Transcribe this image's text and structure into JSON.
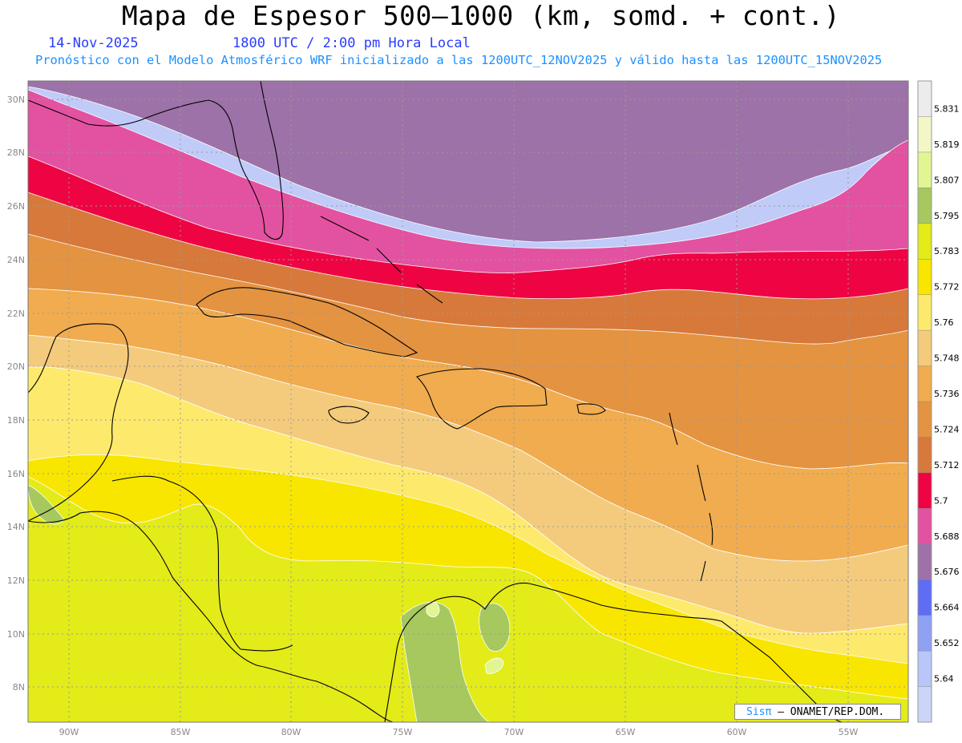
{
  "title": "Mapa de Espesor 500–1000 (km, somd. + cont.)",
  "date": "14-Nov-2025",
  "time_label": "1800 UTC / 2:00 pm Hora Local",
  "forecast_line": "Pronóstico con el Modelo Atmosférico WRF inicializado a las 1200UTC_12NOV2025 y válido hasta las  1200UTC_15NOV2025",
  "credit": {
    "brand": "Sisπ",
    "org": " – ONAMET/REP.DOM."
  },
  "colors": {
    "title": "#000000",
    "subtitle": "#2a3cff",
    "forecast": "#1e90ff",
    "credit_brand": "#1e90ff",
    "coastline": "#000000",
    "grid": "#9a9a9a",
    "contour": "#ffffff"
  },
  "longitude_labels": [
    "90W",
    "85W",
    "80W",
    "75W",
    "70W",
    "65W",
    "60W",
    "55W"
  ],
  "latitude_labels": [
    "30N",
    "28N",
    "26N",
    "24N",
    "22N",
    "20N",
    "18N",
    "16N",
    "14N",
    "12N",
    "10N",
    "8N"
  ],
  "legend": {
    "labels": [
      "5.831",
      "5.819",
      "5.807",
      "5.795",
      "5.783",
      "5.772",
      "5.76",
      "5.748",
      "5.736",
      "5.724",
      "5.712",
      "5.7",
      "5.688",
      "5.676",
      "5.664",
      "5.652",
      "5.64"
    ],
    "colors": [
      "#ececec",
      "#f3f7c8",
      "#e2f593",
      "#a6c85f",
      "#e3eb19",
      "#f8e600",
      "#fde96c",
      "#f4cb7c",
      "#f0ac4f",
      "#e49341",
      "#d7793b",
      "#ee0443",
      "#e352a0",
      "#9d72a8",
      "#5f6df5",
      "#8ea1f5",
      "#b8c6f9",
      "#cbd5f7"
    ]
  }
}
